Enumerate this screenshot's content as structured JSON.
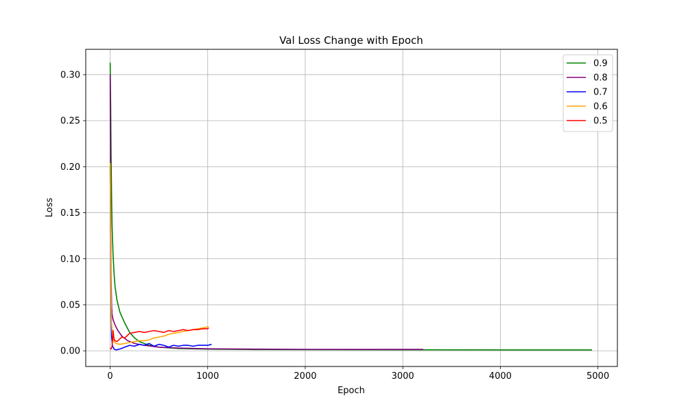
{
  "chart_data": {
    "type": "line",
    "title": "Val Loss Change with Epoch",
    "xlabel": "Epoch",
    "ylabel": "Loss",
    "xlim": [
      -250,
      5200
    ],
    "ylim": [
      -0.017,
      0.3275
    ],
    "xticks": [
      0,
      1000,
      2000,
      3000,
      4000,
      5000
    ],
    "yticks": [
      0.0,
      0.05,
      0.1,
      0.15,
      0.2,
      0.25,
      0.3
    ],
    "xtick_labels": [
      "0",
      "1000",
      "2000",
      "3000",
      "4000",
      "5000"
    ],
    "ytick_labels": [
      "0.00",
      "0.05",
      "0.10",
      "0.15",
      "0.20",
      "0.25",
      "0.30"
    ],
    "grid": true,
    "legend_position": "top-right",
    "series": [
      {
        "name": "0.9",
        "color": "#008000",
        "points": [
          [
            0,
            0.313
          ],
          [
            5,
            0.27
          ],
          [
            10,
            0.21
          ],
          [
            15,
            0.165
          ],
          [
            20,
            0.135
          ],
          [
            30,
            0.105
          ],
          [
            40,
            0.085
          ],
          [
            50,
            0.07
          ],
          [
            70,
            0.055
          ],
          [
            100,
            0.042
          ],
          [
            150,
            0.03
          ],
          [
            200,
            0.02
          ],
          [
            250,
            0.014
          ],
          [
            300,
            0.01
          ],
          [
            400,
            0.006
          ],
          [
            500,
            0.004
          ],
          [
            700,
            0.0025
          ],
          [
            1000,
            0.0018
          ],
          [
            1500,
            0.0014
          ],
          [
            2000,
            0.0012
          ],
          [
            3000,
            0.0011
          ],
          [
            4000,
            0.001
          ],
          [
            4940,
            0.001
          ]
        ]
      },
      {
        "name": "0.8",
        "color": "#800080",
        "points": [
          [
            0,
            0.3
          ],
          [
            3,
            0.2
          ],
          [
            6,
            0.13
          ],
          [
            10,
            0.08
          ],
          [
            15,
            0.05
          ],
          [
            20,
            0.04
          ],
          [
            30,
            0.034
          ],
          [
            50,
            0.028
          ],
          [
            80,
            0.022
          ],
          [
            120,
            0.016
          ],
          [
            180,
            0.011
          ],
          [
            250,
            0.008
          ],
          [
            350,
            0.006
          ],
          [
            500,
            0.004
          ],
          [
            700,
            0.003
          ],
          [
            1000,
            0.0022
          ],
          [
            1500,
            0.0018
          ],
          [
            2000,
            0.0016
          ],
          [
            2500,
            0.0015
          ],
          [
            3000,
            0.0015
          ],
          [
            3210,
            0.0015
          ]
        ]
      },
      {
        "name": "0.7",
        "color": "#0000ff",
        "points": [
          [
            0,
            0.2
          ],
          [
            5,
            0.1
          ],
          [
            10,
            0.04
          ],
          [
            15,
            0.015
          ],
          [
            25,
            0.005
          ],
          [
            40,
            0.002
          ],
          [
            60,
            0.001
          ],
          [
            100,
            0.002
          ],
          [
            150,
            0.004
          ],
          [
            200,
            0.006
          ],
          [
            250,
            0.005
          ],
          [
            300,
            0.007
          ],
          [
            350,
            0.006
          ],
          [
            400,
            0.008
          ],
          [
            450,
            0.005
          ],
          [
            500,
            0.007
          ],
          [
            550,
            0.006
          ],
          [
            600,
            0.004
          ],
          [
            650,
            0.006
          ],
          [
            700,
            0.005
          ],
          [
            750,
            0.006
          ],
          [
            800,
            0.006
          ],
          [
            850,
            0.005
          ],
          [
            900,
            0.006
          ],
          [
            950,
            0.006
          ],
          [
            1000,
            0.006
          ],
          [
            1040,
            0.007
          ]
        ]
      },
      {
        "name": "0.6",
        "color": "#ffa500",
        "points": [
          [
            0,
            0.204
          ],
          [
            5,
            0.12
          ],
          [
            10,
            0.06
          ],
          [
            15,
            0.03
          ],
          [
            25,
            0.015
          ],
          [
            40,
            0.01
          ],
          [
            60,
            0.008
          ],
          [
            100,
            0.007
          ],
          [
            150,
            0.008
          ],
          [
            200,
            0.009
          ],
          [
            250,
            0.01
          ],
          [
            300,
            0.011
          ],
          [
            350,
            0.011
          ],
          [
            400,
            0.012
          ],
          [
            450,
            0.014
          ],
          [
            500,
            0.015
          ],
          [
            550,
            0.016
          ],
          [
            600,
            0.018
          ],
          [
            650,
            0.019
          ],
          [
            700,
            0.02
          ],
          [
            750,
            0.021
          ],
          [
            800,
            0.022
          ],
          [
            850,
            0.023
          ],
          [
            900,
            0.024
          ],
          [
            950,
            0.025
          ],
          [
            1000,
            0.026
          ],
          [
            1010,
            0.026
          ]
        ]
      },
      {
        "name": "0.5",
        "color": "#ff0000",
        "points": [
          [
            0,
            0.003
          ],
          [
            10,
            0.002
          ],
          [
            20,
            0.005
          ],
          [
            25,
            0.012
          ],
          [
            30,
            0.022
          ],
          [
            40,
            0.013
          ],
          [
            50,
            0.011
          ],
          [
            70,
            0.01
          ],
          [
            100,
            0.013
          ],
          [
            120,
            0.015
          ],
          [
            150,
            0.014
          ],
          [
            180,
            0.017
          ],
          [
            200,
            0.019
          ],
          [
            250,
            0.02
          ],
          [
            300,
            0.021
          ],
          [
            350,
            0.02
          ],
          [
            400,
            0.021
          ],
          [
            450,
            0.022
          ],
          [
            500,
            0.021
          ],
          [
            550,
            0.02
          ],
          [
            600,
            0.022
          ],
          [
            650,
            0.021
          ],
          [
            700,
            0.022
          ],
          [
            750,
            0.023
          ],
          [
            800,
            0.022
          ],
          [
            850,
            0.023
          ],
          [
            900,
            0.023
          ],
          [
            950,
            0.024
          ],
          [
            1000,
            0.024
          ],
          [
            1010,
            0.025
          ]
        ]
      }
    ]
  }
}
